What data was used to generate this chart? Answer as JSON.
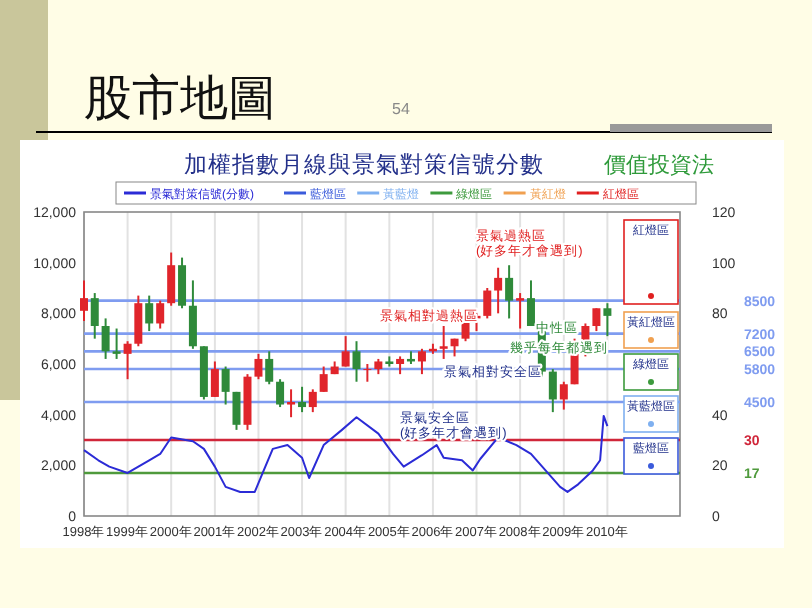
{
  "chart_data": {
    "type": "candlestick",
    "title": "股市地圖",
    "subtitle": "加權指數月線與景氣對策信號分數",
    "annotations": [
      "54",
      "價值投資法",
      "景氣過熱區 (好多年才會遇到)",
      "景氣相對過熱區",
      "中性區",
      "幾乎每年都遇到",
      "景氣相對安全區",
      "景氣安全區 (好多年才會遇到)",
      "紅燈區",
      "黃紅燈區",
      "綠燈區",
      "黃藍燈區",
      "藍燈區",
      "藍燈區",
      "黃藍燈",
      "綠燈區",
      "黃紅燈",
      "紅燈區"
    ],
    "x": [
      "1998-01",
      "1998-04",
      "1998-07",
      "1998-10",
      "1999-01",
      "1999-04",
      "1999-07",
      "1999-10",
      "2000-01",
      "2000-04",
      "2000-07",
      "2000-10",
      "2001-01",
      "2001-04",
      "2001-07",
      "2001-10",
      "2002-01",
      "2002-04",
      "2002-07",
      "2002-10",
      "2003-01",
      "2003-04",
      "2003-07",
      "2003-10",
      "2004-01",
      "2004-04",
      "2004-07",
      "2004-10",
      "2005-01",
      "2005-04",
      "2005-07",
      "2005-10",
      "2006-01",
      "2006-04",
      "2006-07",
      "2006-10",
      "2007-01",
      "2007-04",
      "2007-07",
      "2007-10",
      "2008-01",
      "2008-04",
      "2008-07",
      "2008-10",
      "2009-01",
      "2009-04",
      "2009-07",
      "2009-10",
      "2010-01"
    ],
    "ohlc": [
      [
        8100,
        9300,
        7700,
        8600
      ],
      [
        8600,
        8800,
        7000,
        7500
      ],
      [
        7500,
        7800,
        6200,
        6500
      ],
      [
        6500,
        7400,
        6200,
        6400
      ],
      [
        6400,
        6900,
        5400,
        6800
      ],
      [
        6800,
        8700,
        6700,
        8400
      ],
      [
        8400,
        8700,
        7300,
        7600
      ],
      [
        7600,
        8500,
        7400,
        8400
      ],
      [
        8400,
        10400,
        8300,
        9900
      ],
      [
        9900,
        10200,
        8200,
        8300
      ],
      [
        8300,
        9300,
        6600,
        6700
      ],
      [
        6700,
        6700,
        4600,
        4700
      ],
      [
        4700,
        6100,
        4700,
        5800
      ],
      [
        5800,
        5900,
        4400,
        4900
      ],
      [
        4900,
        4900,
        3400,
        3600
      ],
      [
        3600,
        5600,
        3400,
        5500
      ],
      [
        5500,
        6400,
        5400,
        6200
      ],
      [
        6200,
        6500,
        5200,
        5300
      ],
      [
        5300,
        5400,
        4300,
        4400
      ],
      [
        4400,
        5000,
        3900,
        4500
      ],
      [
        4500,
        5100,
        4100,
        4300
      ],
      [
        4300,
        5000,
        4100,
        4900
      ],
      [
        4900,
        5900,
        4900,
        5600
      ],
      [
        5600,
        6100,
        5600,
        5900
      ],
      [
        5900,
        7100,
        5900,
        6500
      ],
      [
        6500,
        6900,
        5300,
        5800
      ],
      [
        5800,
        6000,
        5300,
        5800
      ],
      [
        5800,
        6200,
        5600,
        6100
      ],
      [
        6100,
        6300,
        5900,
        6000
      ],
      [
        6000,
        6300,
        5600,
        6200
      ],
      [
        6200,
        6500,
        6000,
        6100
      ],
      [
        6100,
        6600,
        5600,
        6500
      ],
      [
        6500,
        6800,
        6400,
        6600
      ],
      [
        6600,
        7500,
        6200,
        6700
      ],
      [
        6700,
        7000,
        6300,
        7000
      ],
      [
        7000,
        7900,
        6900,
        7800
      ],
      [
        7800,
        8000,
        7300,
        7900
      ],
      [
        7900,
        9000,
        7800,
        8900
      ],
      [
        8900,
        9800,
        8000,
        9400
      ],
      [
        9400,
        9900,
        7800,
        8500
      ],
      [
        8500,
        8800,
        7400,
        8600
      ],
      [
        8600,
        9300,
        7500,
        7500
      ],
      [
        7500,
        7600,
        5500,
        5700
      ],
      [
        5700,
        5800,
        4100,
        4600
      ],
      [
        4600,
        5300,
        4200,
        5200
      ],
      [
        5200,
        7000,
        5200,
        6400
      ],
      [
        6400,
        7600,
        6300,
        7500
      ],
      [
        7500,
        8200,
        7300,
        8200
      ],
      [
        8200,
        8400,
        7100,
        7900
      ]
    ],
    "series": [
      {
        "name": "景氣對策信號(分數)",
        "type": "line",
        "axis": "y2",
        "color": "#2b2bd6",
        "x": [
          "1998-01",
          "1998-05",
          "1998-08",
          "1999-01",
          "1999-07",
          "1999-10",
          "2000-01",
          "2000-07",
          "2000-10",
          "2001-01",
          "2001-04",
          "2001-08",
          "2001-12",
          "2002-02",
          "2002-05",
          "2002-09",
          "2003-01",
          "2003-03",
          "2003-07",
          "2003-12",
          "2004-04",
          "2004-10",
          "2005-02",
          "2005-05",
          "2005-10",
          "2006-02",
          "2006-04",
          "2006-09",
          "2006-12",
          "2007-02",
          "2007-07",
          "2007-12",
          "2008-04",
          "2008-08",
          "2008-12",
          "2009-02",
          "2009-05",
          "2009-09",
          "2009-11",
          "2009-12",
          "2010-01"
        ],
        "values": [
          26,
          22,
          19.5,
          17,
          22,
          24.5,
          31,
          29.5,
          26.5,
          19.5,
          11.5,
          9.5,
          9.5,
          16.5,
          26.5,
          28,
          23,
          15,
          28,
          34,
          39,
          32.5,
          24.5,
          19.5,
          24,
          28,
          23,
          22,
          18,
          22.5,
          31,
          28,
          24.5,
          18,
          11.5,
          9.5,
          12.5,
          18,
          22,
          39.5,
          35.5
        ]
      }
    ],
    "xlim": [
      "1998-01",
      "2011-09"
    ],
    "xticks": [
      {
        "value": "1998",
        "label": "1998年"
      },
      {
        "value": "1999",
        "label": "1999年"
      },
      {
        "value": "2000",
        "label": "2000年"
      },
      {
        "value": "2001",
        "label": "2001年"
      },
      {
        "value": "2002",
        "label": "2002年"
      },
      {
        "value": "2003",
        "label": "2003年"
      },
      {
        "value": "2004",
        "label": "2004年"
      },
      {
        "value": "2005",
        "label": "2005年"
      },
      {
        "value": "2006",
        "label": "2006年"
      },
      {
        "value": "2007",
        "label": "2007年"
      },
      {
        "value": "2008",
        "label": "2008年"
      },
      {
        "value": "2009",
        "label": "2009年"
      },
      {
        "value": "2010",
        "label": "2010年"
      }
    ],
    "ylim": [
      0,
      12000
    ],
    "yticks": [
      {
        "value": 0,
        "label": "0"
      },
      {
        "value": 2000,
        "label": "2,000"
      },
      {
        "value": 4000,
        "label": "4,000"
      },
      {
        "value": 6000,
        "label": "6,000"
      },
      {
        "value": 8000,
        "label": "8,000"
      },
      {
        "value": 10000,
        "label": "10,000"
      },
      {
        "value": 12000,
        "label": "12,000"
      }
    ],
    "y2lim": [
      0,
      120
    ],
    "y2ticks": [
      0,
      20,
      40,
      80,
      100,
      120
    ],
    "ref_lines": [
      {
        "axis": "y",
        "value": 8500,
        "label": "8500",
        "color": "#7f9cf0"
      },
      {
        "axis": "y",
        "value": 7200,
        "label": "7200",
        "color": "#7f9cf0"
      },
      {
        "axis": "y",
        "value": 6500,
        "label": "6500",
        "color": "#7f9cf0"
      },
      {
        "axis": "y",
        "value": 5800,
        "label": "5800",
        "color": "#7f9cf0"
      },
      {
        "axis": "y",
        "value": 4500,
        "label": "4500",
        "color": "#7f9cf0"
      },
      {
        "axis": "y2",
        "value": 30,
        "label": "30",
        "color": "#d0263a"
      },
      {
        "axis": "y2",
        "value": 17,
        "label": "17",
        "color": "#4f9a3c"
      }
    ],
    "grid": "x",
    "legend": "top"
  }
}
